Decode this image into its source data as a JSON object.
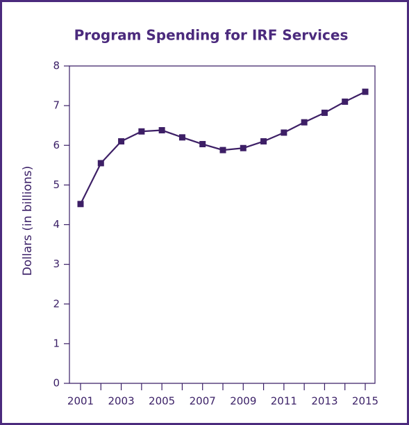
{
  "chart_data": {
    "type": "line",
    "title": "Program Spending for IRF Services",
    "y_label": "Dollars (in billions)",
    "categories": [
      "2001",
      null,
      "2003",
      null,
      "2005",
      null,
      "2007",
      null,
      "2009",
      null,
      "2011",
      null,
      "2013",
      null,
      "2015"
    ],
    "values": [
      4.52,
      5.55,
      6.1,
      6.35,
      6.38,
      6.2,
      6.03,
      5.88,
      5.93,
      6.1,
      6.32,
      6.58,
      6.82,
      7.1,
      7.35
    ],
    "color": "#3d1f66",
    "ylim": [
      0,
      8
    ],
    "yticks": [
      0,
      1,
      2,
      3,
      4,
      5,
      6,
      7,
      8
    ],
    "grid": false
  }
}
